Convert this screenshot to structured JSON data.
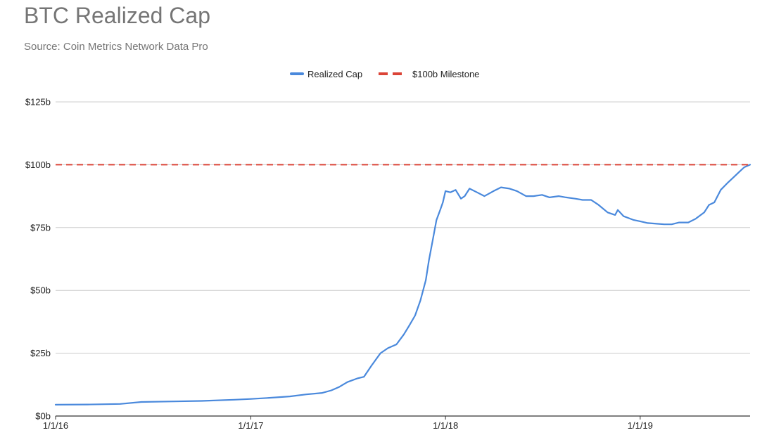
{
  "chart_data": {
    "type": "line",
    "title": "BTC Realized Cap",
    "subtitle": "Source: Coin Metrics Network Data Pro",
    "xlabel": "",
    "ylabel": "",
    "x_ticks": [
      "1/1/16",
      "1/1/17",
      "1/1/18",
      "1/1/19"
    ],
    "x_range": [
      "2016-01-01",
      "2019-07-26"
    ],
    "y_ticks": [
      "$0b",
      "$25b",
      "$50b",
      "$75b",
      "$100b",
      "$125b"
    ],
    "ylim": [
      0,
      125
    ],
    "y_unit": "billion USD",
    "grid": true,
    "legend_position": "top-center",
    "series": [
      {
        "name": "Realized Cap",
        "color": "#4a89dc",
        "x": [
          "2016-01-01",
          "2016-03-01",
          "2016-05-01",
          "2016-06-10",
          "2016-08-01",
          "2016-10-01",
          "2016-12-01",
          "2017-01-01",
          "2017-02-01",
          "2017-03-15",
          "2017-04-15",
          "2017-05-15",
          "2017-06-01",
          "2017-06-15",
          "2017-07-01",
          "2017-07-20",
          "2017-08-01",
          "2017-08-15",
          "2017-09-01",
          "2017-09-15",
          "2017-10-01",
          "2017-10-15",
          "2017-10-25",
          "2017-11-05",
          "2017-11-15",
          "2017-11-25",
          "2017-12-01",
          "2017-12-08",
          "2017-12-15",
          "2017-12-22",
          "2017-12-27",
          "2018-01-01",
          "2018-01-10",
          "2018-01-20",
          "2018-01-30",
          "2018-02-06",
          "2018-02-15",
          "2018-03-01",
          "2018-03-15",
          "2018-04-01",
          "2018-04-15",
          "2018-05-01",
          "2018-05-15",
          "2018-06-01",
          "2018-06-15",
          "2018-07-01",
          "2018-07-15",
          "2018-08-01",
          "2018-08-15",
          "2018-09-01",
          "2018-09-15",
          "2018-10-01",
          "2018-10-15",
          "2018-11-01",
          "2018-11-15",
          "2018-11-20",
          "2018-12-01",
          "2018-12-20",
          "2019-01-01",
          "2019-01-15",
          "2019-02-01",
          "2019-02-15",
          "2019-03-01",
          "2019-03-15",
          "2019-04-01",
          "2019-04-15",
          "2019-05-01",
          "2019-05-10",
          "2019-05-20",
          "2019-06-01",
          "2019-06-15",
          "2019-06-25",
          "2019-07-05",
          "2019-07-15",
          "2019-07-26"
        ],
        "values": [
          4.5,
          4.6,
          4.8,
          5.6,
          5.8,
          6.0,
          6.5,
          6.8,
          7.2,
          7.8,
          8.6,
          9.2,
          10.2,
          11.5,
          13.5,
          15.0,
          15.6,
          20.0,
          25.0,
          27.0,
          28.5,
          32.5,
          36.0,
          40.0,
          46.0,
          54.0,
          62.0,
          70.0,
          78.0,
          82.0,
          85.0,
          89.5,
          89.0,
          90.0,
          86.5,
          87.5,
          90.5,
          89.0,
          87.5,
          89.5,
          91.0,
          90.5,
          89.5,
          87.5,
          87.5,
          88.0,
          87.0,
          87.5,
          87.0,
          86.5,
          86.0,
          86.0,
          84.0,
          81.0,
          80.0,
          82.0,
          79.5,
          78.0,
          77.5,
          76.8,
          76.5,
          76.3,
          76.3,
          77.0,
          77.0,
          78.5,
          81.0,
          84.0,
          85.0,
          90.0,
          93.0,
          95.0,
          97.0,
          99.0,
          100.0
        ]
      },
      {
        "name": "$100b Milestone",
        "color": "#db4437",
        "dashed": true,
        "x": [
          "2016-01-01",
          "2019-07-26"
        ],
        "values": [
          100,
          100
        ]
      }
    ]
  }
}
